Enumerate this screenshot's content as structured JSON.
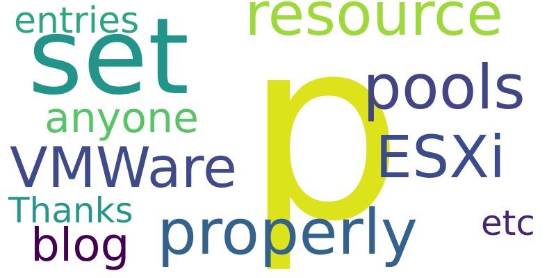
{
  "words": [
    {
      "key": "p",
      "text": "p",
      "color": "#dde31a"
    },
    {
      "key": "set",
      "text": "set",
      "color": "#21958a"
    },
    {
      "key": "resource",
      "text": "resource",
      "color": "#9ed93a"
    },
    {
      "key": "pools",
      "text": "pools",
      "color": "#414487"
    },
    {
      "key": "entries",
      "text": "entries",
      "color": "#2aa780"
    },
    {
      "key": "anyone",
      "text": "anyone",
      "color": "#56c567"
    },
    {
      "key": "vmware",
      "text": "VMWare",
      "color": "#3e4a89"
    },
    {
      "key": "esxi",
      "text": "ESXi",
      "color": "#3b4c8c"
    },
    {
      "key": "thanks",
      "text": "Thanks",
      "color": "#23978a"
    },
    {
      "key": "blog",
      "text": "blog",
      "color": "#440154"
    },
    {
      "key": "properly",
      "text": "properly",
      "color": "#33628d"
    },
    {
      "key": "etc",
      "text": "etc",
      "color": "#482475"
    }
  ]
}
